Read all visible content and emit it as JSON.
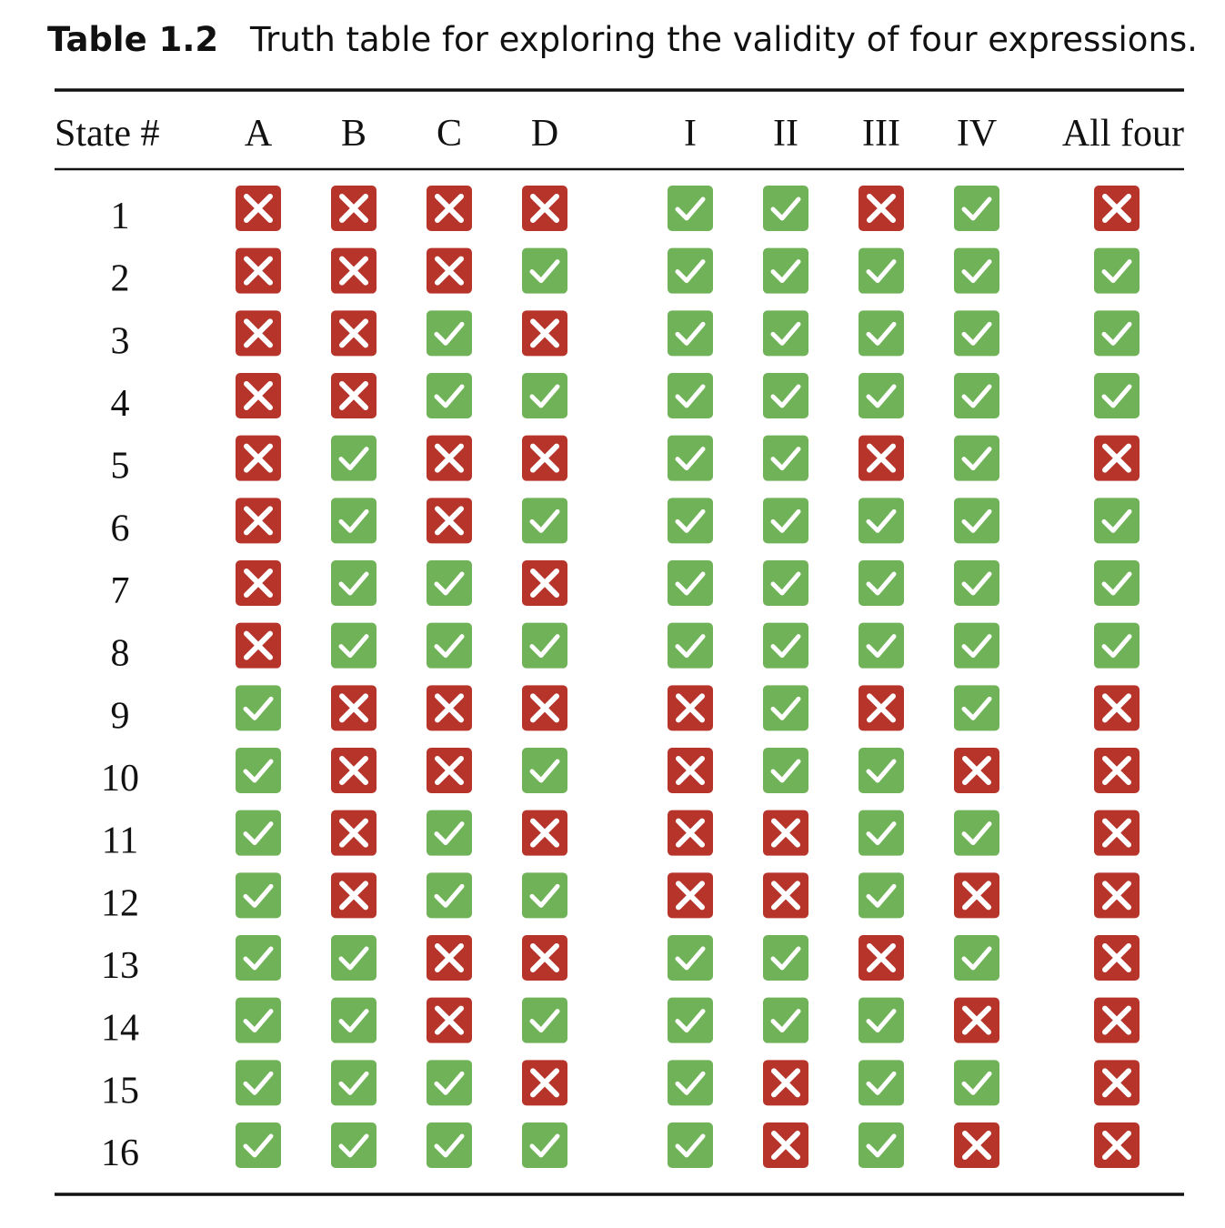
{
  "caption": {
    "label": "Table 1.2",
    "text": "Truth table for exploring the validity of four expressions."
  },
  "table": {
    "header": [
      "State #",
      "A",
      "B",
      "C",
      "D",
      "I",
      "II",
      "III",
      "IV",
      "All four"
    ],
    "rows": [
      {
        "state": 1,
        "values": [
          false,
          false,
          false,
          false,
          true,
          true,
          false,
          true,
          false
        ]
      },
      {
        "state": 2,
        "values": [
          false,
          false,
          false,
          true,
          true,
          true,
          true,
          true,
          true
        ]
      },
      {
        "state": 3,
        "values": [
          false,
          false,
          true,
          false,
          true,
          true,
          true,
          true,
          true
        ]
      },
      {
        "state": 4,
        "values": [
          false,
          false,
          true,
          true,
          true,
          true,
          true,
          true,
          true
        ]
      },
      {
        "state": 5,
        "values": [
          false,
          true,
          false,
          false,
          true,
          true,
          false,
          true,
          false
        ]
      },
      {
        "state": 6,
        "values": [
          false,
          true,
          false,
          true,
          true,
          true,
          true,
          true,
          true
        ]
      },
      {
        "state": 7,
        "values": [
          false,
          true,
          true,
          false,
          true,
          true,
          true,
          true,
          true
        ]
      },
      {
        "state": 8,
        "values": [
          false,
          true,
          true,
          true,
          true,
          true,
          true,
          true,
          true
        ]
      },
      {
        "state": 9,
        "values": [
          true,
          false,
          false,
          false,
          false,
          true,
          false,
          true,
          false
        ]
      },
      {
        "state": 10,
        "values": [
          true,
          false,
          false,
          true,
          false,
          true,
          true,
          false,
          false
        ]
      },
      {
        "state": 11,
        "values": [
          true,
          false,
          true,
          false,
          false,
          false,
          true,
          true,
          false
        ]
      },
      {
        "state": 12,
        "values": [
          true,
          false,
          true,
          true,
          false,
          false,
          true,
          false,
          false
        ]
      },
      {
        "state": 13,
        "values": [
          true,
          true,
          false,
          false,
          true,
          true,
          false,
          true,
          false
        ]
      },
      {
        "state": 14,
        "values": [
          true,
          true,
          false,
          true,
          true,
          true,
          true,
          false,
          false
        ]
      },
      {
        "state": 15,
        "values": [
          true,
          true,
          true,
          false,
          true,
          false,
          true,
          true,
          false
        ]
      },
      {
        "state": 16,
        "values": [
          true,
          true,
          true,
          true,
          true,
          false,
          true,
          false,
          false
        ]
      }
    ]
  }
}
